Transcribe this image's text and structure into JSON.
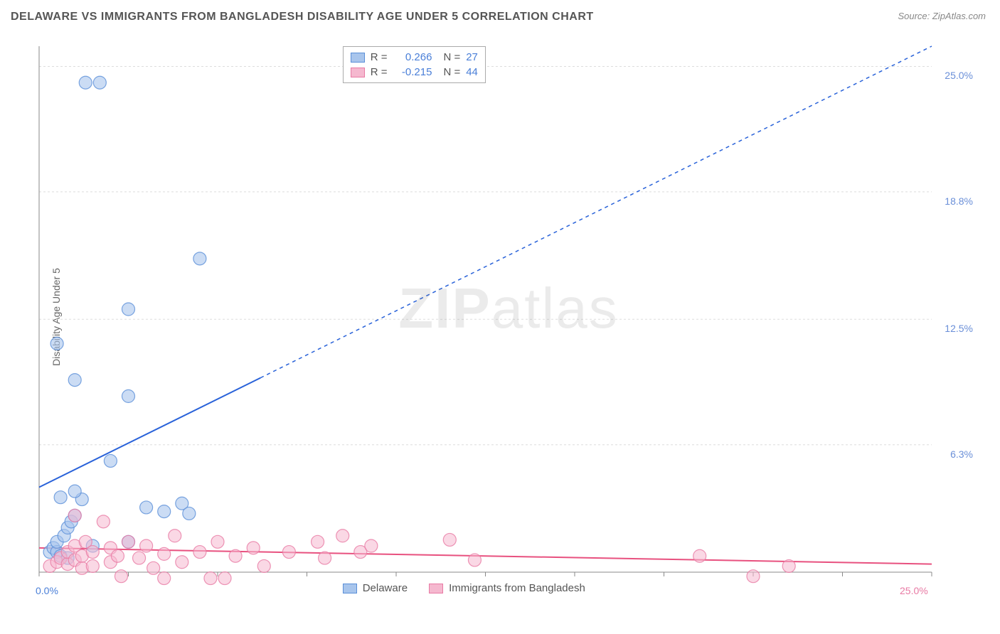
{
  "title": "DELAWARE VS IMMIGRANTS FROM BANGLADESH DISABILITY AGE UNDER 5 CORRELATION CHART",
  "source": "Source: ZipAtlas.com",
  "watermark_zip": "ZIP",
  "watermark_atlas": "atlas",
  "y_axis_label": "Disability Age Under 5",
  "chart": {
    "type": "scatter",
    "xlim": [
      0,
      25
    ],
    "ylim": [
      0,
      26
    ],
    "x_ticks": [
      {
        "v": 0,
        "label": "0.0%",
        "color": "#4a7fd8"
      },
      {
        "v": 25,
        "label": "25.0%",
        "color": "#e87aa4"
      }
    ],
    "y_ticks": [
      {
        "v": 6.3,
        "label": "6.3%"
      },
      {
        "v": 12.5,
        "label": "12.5%"
      },
      {
        "v": 18.8,
        "label": "18.8%"
      },
      {
        "v": 25.0,
        "label": "25.0%"
      }
    ],
    "y_tick_color": "#6a8fd8",
    "grid_color": "#dddddd",
    "axis_color": "#888888",
    "background_color": "#ffffff",
    "series": [
      {
        "name": "Delaware",
        "marker_fill": "#a8c5ec",
        "marker_stroke": "#5a8fd8",
        "marker_opacity": 0.6,
        "marker_radius": 9,
        "line_color": "#2962d9",
        "line_width": 2,
        "line_dash_extend": "5,5",
        "R": "0.266",
        "N": "27",
        "trend": {
          "x1": 0,
          "y1": 4.2,
          "x2": 25,
          "y2": 26,
          "solid_to_x": 6.2
        },
        "points": [
          [
            0.3,
            1.0
          ],
          [
            0.4,
            1.2
          ],
          [
            0.5,
            1.0
          ],
          [
            0.6,
            0.8
          ],
          [
            0.5,
            1.5
          ],
          [
            0.7,
            1.8
          ],
          [
            0.8,
            2.2
          ],
          [
            0.9,
            2.5
          ],
          [
            0.6,
            3.7
          ],
          [
            1.2,
            3.6
          ],
          [
            1.0,
            4.0
          ],
          [
            2.0,
            5.5
          ],
          [
            3.0,
            3.2
          ],
          [
            3.5,
            3.0
          ],
          [
            4.0,
            3.4
          ],
          [
            4.2,
            2.9
          ],
          [
            1.0,
            2.8
          ],
          [
            0.5,
            11.3
          ],
          [
            1.0,
            9.5
          ],
          [
            2.5,
            8.7
          ],
          [
            2.5,
            13.0
          ],
          [
            4.5,
            15.5
          ],
          [
            1.3,
            24.2
          ],
          [
            1.7,
            24.2
          ],
          [
            2.5,
            1.5
          ],
          [
            0.8,
            0.7
          ],
          [
            1.5,
            1.3
          ]
        ]
      },
      {
        "name": "Immigrants from Bangladesh",
        "marker_fill": "#f5b8cf",
        "marker_stroke": "#e87aa4",
        "marker_opacity": 0.55,
        "marker_radius": 9,
        "line_color": "#e8517f",
        "line_width": 2,
        "R": "-0.215",
        "N": "44",
        "trend": {
          "x1": 0,
          "y1": 1.2,
          "x2": 25,
          "y2": 0.4
        },
        "points": [
          [
            0.3,
            0.3
          ],
          [
            0.5,
            0.5
          ],
          [
            0.6,
            0.7
          ],
          [
            0.8,
            0.4
          ],
          [
            0.8,
            1.0
          ],
          [
            1.0,
            0.6
          ],
          [
            1.0,
            1.3
          ],
          [
            1.2,
            0.2
          ],
          [
            1.2,
            0.8
          ],
          [
            1.3,
            1.5
          ],
          [
            1.5,
            0.3
          ],
          [
            1.5,
            1.0
          ],
          [
            1.8,
            2.5
          ],
          [
            2.0,
            0.5
          ],
          [
            2.0,
            1.2
          ],
          [
            2.2,
            0.8
          ],
          [
            2.3,
            -0.2
          ],
          [
            2.5,
            1.5
          ],
          [
            2.8,
            0.7
          ],
          [
            3.0,
            1.3
          ],
          [
            3.2,
            0.2
          ],
          [
            3.5,
            0.9
          ],
          [
            3.5,
            -0.3
          ],
          [
            3.8,
            1.8
          ],
          [
            4.0,
            0.5
          ],
          [
            4.5,
            1.0
          ],
          [
            4.8,
            -0.3
          ],
          [
            5.0,
            1.5
          ],
          [
            5.2,
            -0.3
          ],
          [
            5.5,
            0.8
          ],
          [
            6.0,
            1.2
          ],
          [
            6.3,
            0.3
          ],
          [
            7.0,
            1.0
          ],
          [
            7.8,
            1.5
          ],
          [
            8.0,
            0.7
          ],
          [
            8.5,
            1.8
          ],
          [
            9.0,
            1.0
          ],
          [
            9.3,
            1.3
          ],
          [
            11.5,
            1.6
          ],
          [
            12.2,
            0.6
          ],
          [
            18.5,
            0.8
          ],
          [
            20.0,
            -0.2
          ],
          [
            21.0,
            0.3
          ],
          [
            1.0,
            2.8
          ]
        ]
      }
    ]
  },
  "stats_box": {
    "R_label": "R",
    "N_label": "N",
    "eq": "=",
    "value_color": "#4a7fd8"
  },
  "legend": {
    "series1": "Delaware",
    "series2": "Immigrants from Bangladesh"
  }
}
